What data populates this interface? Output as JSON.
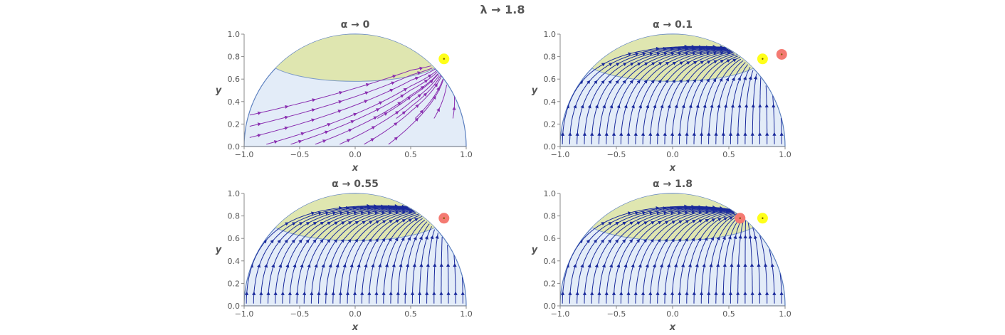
{
  "figure": {
    "title": "λ → 1.8"
  },
  "colors": {
    "semicircle_fill": "#e3ecf8",
    "semicircle_stroke": "#5b7fbf",
    "ellipse_fill": "#dfe6b0",
    "ellipse_stroke": "#7d9bc7",
    "stream_dark": "#1a2a9c",
    "stream_purple": "#8a2fb0",
    "stream_red": "#e8452b",
    "stream_orange": "#f29a1d",
    "point_yellow": "#ffff1a",
    "point_red": "#f47a72",
    "axis": "#888888",
    "text": "#555555"
  },
  "chart_data": [
    {
      "type": "streamplot",
      "title": "α → 0",
      "xlabel": "x",
      "ylabel": "y",
      "xlim": [
        -1,
        1
      ],
      "ylim": [
        0,
        1
      ],
      "xticks": [
        "−1.0",
        "−0.5",
        "0.0",
        "0.5",
        "1.0"
      ],
      "yticks": [
        "0.0",
        "0.2",
        "0.4",
        "0.6",
        "0.8",
        "1.0"
      ],
      "region": "upper unit semicircle",
      "shaded_ellipse": {
        "x_range": [
          -0.8,
          0.8
        ],
        "y_range": [
          0.58,
          1.0
        ]
      },
      "color_scheme": "gradient (purple to orange)",
      "fixed_points": [
        {
          "x": 0.8,
          "y": 0.78,
          "color": "yellow"
        }
      ]
    },
    {
      "type": "streamplot",
      "title": "α → 0.1",
      "xlabel": "x",
      "ylabel": "y",
      "xlim": [
        -1,
        1
      ],
      "ylim": [
        0,
        1
      ],
      "xticks": [
        "−1.0",
        "−0.5",
        "0.0",
        "0.5",
        "1.0"
      ],
      "yticks": [
        "0.0",
        "0.2",
        "0.4",
        "0.6",
        "0.8",
        "1.0"
      ],
      "region": "upper unit semicircle",
      "shaded_ellipse": {
        "x_range": [
          -0.8,
          0.8
        ],
        "y_range": [
          0.58,
          1.0
        ]
      },
      "color_scheme": "solid dark blue",
      "fixed_points": [
        {
          "x": 0.8,
          "y": 0.78,
          "color": "yellow"
        },
        {
          "x": 0.97,
          "y": 0.82,
          "color": "red"
        }
      ]
    },
    {
      "type": "streamplot",
      "title": "α → 0.55",
      "xlabel": "x",
      "ylabel": "y",
      "xlim": [
        -1,
        1
      ],
      "ylim": [
        0,
        1
      ],
      "xticks": [
        "−1.0",
        "−0.5",
        "0.0",
        "0.5",
        "1.0"
      ],
      "yticks": [
        "0.0",
        "0.2",
        "0.4",
        "0.6",
        "0.8",
        "1.0"
      ],
      "region": "upper unit semicircle",
      "shaded_ellipse": {
        "x_range": [
          -0.8,
          0.8
        ],
        "y_range": [
          0.58,
          1.0
        ]
      },
      "color_scheme": "solid dark blue",
      "fixed_points": [
        {
          "x": 0.8,
          "y": 0.78,
          "color": "red"
        }
      ]
    },
    {
      "type": "streamplot",
      "title": "α → 1.8",
      "xlabel": "x",
      "ylabel": "y",
      "xlim": [
        -1,
        1
      ],
      "ylim": [
        0,
        1
      ],
      "xticks": [
        "−1.0",
        "−0.5",
        "0.0",
        "0.5",
        "1.0"
      ],
      "yticks": [
        "0.0",
        "0.2",
        "0.4",
        "0.6",
        "0.8",
        "1.0"
      ],
      "region": "upper unit semicircle",
      "shaded_ellipse": {
        "x_range": [
          -0.8,
          0.8
        ],
        "y_range": [
          0.58,
          1.0
        ]
      },
      "color_scheme": "solid dark blue",
      "fixed_points": [
        {
          "x": 0.6,
          "y": 0.78,
          "color": "red"
        },
        {
          "x": 0.8,
          "y": 0.78,
          "color": "yellow"
        }
      ]
    }
  ]
}
